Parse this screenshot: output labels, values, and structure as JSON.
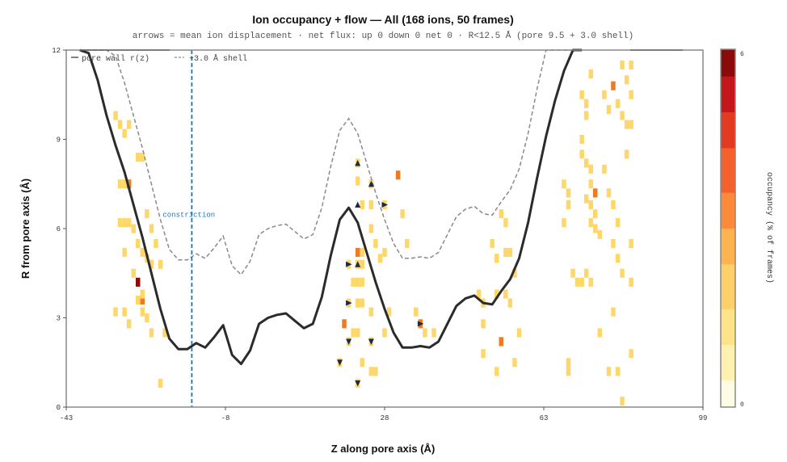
{
  "chart_data": {
    "type": "heatmap",
    "title": "Ion occupancy + flow — All  (168 ions, 50 frames)",
    "subtitle": "arrows = mean ion displacement   ·   net flux: up 0  down 0  net 0 · R<12.5 Å (pore 9.5 + 3.0 shell)",
    "xlabel": "Z along pore axis (Å)",
    "ylabel": "R from pore axis (Å)",
    "xlim": [
      -43,
      99
    ],
    "ylim": [
      0,
      12
    ],
    "xticks": [
      "-43",
      "-8",
      "28",
      "63",
      "99"
    ],
    "yticks": [
      "0",
      "3",
      "6",
      "9",
      "12"
    ],
    "legend": [
      "pore wall r(z)",
      "+3.0 Å shell"
    ],
    "colorbar": {
      "label": "occupancy (% of frames)",
      "min": "0",
      "max": "6"
    },
    "constriction": {
      "z": -15,
      "label": "constriction"
    },
    "pore_wall": {
      "z": [
        -40,
        -38,
        -36,
        -34,
        -32,
        -30,
        -28,
        -26,
        -24,
        -22,
        -20,
        -18,
        -16,
        -14,
        -12,
        -10,
        -8,
        -6,
        -4,
        -2,
        0,
        2,
        4,
        6,
        8,
        10,
        12,
        14,
        16,
        18,
        20,
        22,
        24,
        26,
        28,
        30,
        32,
        34,
        36,
        38,
        40,
        42,
        44,
        46,
        48,
        50,
        52,
        54,
        56,
        58,
        60,
        62,
        64,
        66,
        68,
        70,
        72,
        74,
        76,
        78,
        80,
        82,
        84,
        86,
        88,
        90,
        92
      ],
      "r": [
        12.0,
        11.9,
        11.0,
        9.8,
        8.8,
        7.9,
        6.8,
        5.7,
        4.5,
        3.3,
        2.3,
        1.95,
        1.95,
        2.15,
        2.0,
        2.35,
        2.75,
        1.75,
        1.45,
        1.9,
        2.8,
        3.0,
        3.1,
        3.15,
        2.9,
        2.65,
        2.8,
        3.7,
        5.1,
        6.3,
        6.7,
        6.2,
        5.2,
        4.2,
        3.3,
        2.5,
        2.0,
        2.0,
        2.05,
        2.0,
        2.2,
        2.8,
        3.4,
        3.65,
        3.75,
        3.5,
        3.45,
        3.9,
        4.3,
        5.0,
        6.2,
        7.7,
        9.1,
        10.3,
        11.3,
        12.0,
        12.0
      ]
    },
    "cells": [
      [
        -32,
        9.8,
        1
      ],
      [
        -31,
        9.5,
        1
      ],
      [
        -30,
        9.2,
        1
      ],
      [
        -29,
        9.5,
        1
      ],
      [
        -31,
        7.5,
        1
      ],
      [
        -30,
        7.5,
        1
      ],
      [
        -29,
        7.5,
        4
      ],
      [
        -27,
        8.4,
        1
      ],
      [
        -26,
        8.4,
        1
      ],
      [
        -31,
        6.2,
        1
      ],
      [
        -30,
        6.2,
        1
      ],
      [
        -29,
        6.2,
        1
      ],
      [
        -28,
        6.0,
        1
      ],
      [
        -27,
        5.5,
        1
      ],
      [
        -26,
        5.2,
        1
      ],
      [
        -25,
        5.0,
        1
      ],
      [
        -24,
        4.8,
        1
      ],
      [
        -25,
        6.5,
        1
      ],
      [
        -24,
        6.0,
        1
      ],
      [
        -23,
        5.5,
        1
      ],
      [
        -30,
        5.2,
        1
      ],
      [
        -28,
        4.5,
        1
      ],
      [
        -27,
        4.2,
        6
      ],
      [
        -26,
        3.6,
        4
      ],
      [
        -27,
        3.6,
        1
      ],
      [
        -26,
        3.8,
        1
      ],
      [
        -32,
        3.2,
        1
      ],
      [
        -30,
        3.2,
        1
      ],
      [
        -29,
        2.8,
        1
      ],
      [
        -26,
        3.2,
        1
      ],
      [
        -25,
        3.0,
        1
      ],
      [
        -24,
        2.5,
        1
      ],
      [
        -22,
        4.8,
        1
      ],
      [
        -21,
        2.5,
        1
      ],
      [
        -22,
        0.8,
        1
      ],
      [
        18,
        1.5,
        1
      ],
      [
        20,
        4.8,
        1
      ],
      [
        21,
        4.2,
        1
      ],
      [
        20,
        3.5,
        1
      ],
      [
        19,
        2.8,
        4
      ],
      [
        21,
        2.5,
        1
      ],
      [
        20,
        2.2,
        1
      ],
      [
        22,
        8.2,
        1
      ],
      [
        22,
        7.6,
        1
      ],
      [
        22,
        5.2,
        4
      ],
      [
        23,
        5.2,
        1
      ],
      [
        22,
        4.8,
        1
      ],
      [
        23,
        4.8,
        1
      ],
      [
        22,
        4.2,
        1
      ],
      [
        23,
        4.2,
        1
      ],
      [
        22,
        3.5,
        1
      ],
      [
        23,
        3.5,
        1
      ],
      [
        22,
        2.5,
        1
      ],
      [
        23,
        1.5,
        1
      ],
      [
        22,
        0.8,
        1
      ],
      [
        23,
        6.8,
        1
      ],
      [
        25,
        7.5,
        1
      ],
      [
        25,
        6.8,
        1
      ],
      [
        25,
        6.0,
        1
      ],
      [
        26,
        5.5,
        1
      ],
      [
        27,
        5.0,
        1
      ],
      [
        25,
        3.2,
        1
      ],
      [
        25,
        2.2,
        1
      ],
      [
        25,
        1.2,
        1
      ],
      [
        26,
        1.2,
        1
      ],
      [
        28,
        6.8,
        1
      ],
      [
        28,
        5.2,
        1
      ],
      [
        29,
        3.2,
        1
      ],
      [
        28,
        2.5,
        1
      ],
      [
        31,
        7.8,
        4
      ],
      [
        32,
        6.5,
        1
      ],
      [
        33,
        5.5,
        1
      ],
      [
        35,
        3.2,
        1
      ],
      [
        36,
        2.8,
        4
      ],
      [
        37,
        2.5,
        1
      ],
      [
        39,
        2.5,
        1
      ],
      [
        49,
        3.8,
        1
      ],
      [
        50,
        3.5,
        1
      ],
      [
        50,
        2.8,
        1
      ],
      [
        50,
        1.8,
        1
      ],
      [
        52,
        5.5,
        1
      ],
      [
        53,
        3.8,
        1
      ],
      [
        53,
        5.0,
        1
      ],
      [
        54,
        6.5,
        1
      ],
      [
        55,
        6.2,
        1
      ],
      [
        55,
        5.2,
        1
      ],
      [
        56,
        5.2,
        1
      ],
      [
        54,
        2.2,
        4
      ],
      [
        53,
        1.2,
        1
      ],
      [
        55,
        3.8,
        1
      ],
      [
        56,
        3.5,
        1
      ],
      [
        57,
        4.5,
        1
      ],
      [
        57,
        1.5,
        1
      ],
      [
        58,
        2.5,
        1
      ],
      [
        68,
        7.5,
        1
      ],
      [
        69,
        7.2,
        1
      ],
      [
        69,
        6.8,
        1
      ],
      [
        68,
        6.2,
        1
      ],
      [
        70,
        4.5,
        1
      ],
      [
        71,
        4.2,
        1
      ],
      [
        72,
        4.2,
        1
      ],
      [
        73,
        4.5,
        1
      ],
      [
        74,
        4.2,
        1
      ],
      [
        69,
        1.5,
        1
      ],
      [
        69,
        1.2,
        1
      ],
      [
        72,
        10.5,
        1
      ],
      [
        73,
        10.2,
        1
      ],
      [
        73,
        9.8,
        1
      ],
      [
        74,
        11.2,
        1
      ],
      [
        72,
        9.0,
        1
      ],
      [
        72,
        8.5,
        1
      ],
      [
        73,
        8.2,
        1
      ],
      [
        74,
        8.0,
        1
      ],
      [
        74,
        7.5,
        1
      ],
      [
        75,
        7.2,
        4
      ],
      [
        73,
        7.0,
        1
      ],
      [
        74,
        6.8,
        1
      ],
      [
        75,
        6.5,
        1
      ],
      [
        74,
        6.2,
        1
      ],
      [
        75,
        6.0,
        1
      ],
      [
        76,
        5.8,
        1
      ],
      [
        76,
        2.5,
        1
      ],
      [
        77,
        8.0,
        1
      ],
      [
        78,
        7.2,
        1
      ],
      [
        79,
        6.8,
        1
      ],
      [
        80,
        6.2,
        1
      ],
      [
        77,
        10.5,
        1
      ],
      [
        78,
        10.0,
        1
      ],
      [
        79,
        10.8,
        4
      ],
      [
        80,
        10.2,
        1
      ],
      [
        79,
        5.5,
        1
      ],
      [
        80,
        5.0,
        1
      ],
      [
        81,
        4.5,
        1
      ],
      [
        79,
        3.2,
        1
      ],
      [
        80,
        1.2,
        1
      ],
      [
        81,
        9.8,
        1
      ],
      [
        82,
        9.5,
        1
      ],
      [
        83,
        10.5,
        1
      ],
      [
        83,
        11.5,
        1
      ],
      [
        83,
        9.5,
        1
      ],
      [
        81,
        11.5,
        1
      ],
      [
        82,
        11.0,
        1
      ],
      [
        82,
        8.5,
        1
      ],
      [
        83,
        5.5,
        1
      ],
      [
        83,
        4.2,
        1
      ],
      [
        81,
        0.2,
        1
      ],
      [
        83,
        1.8,
        1
      ],
      [
        78,
        1.2,
        1
      ]
    ],
    "arrows": [
      [
        22,
        8.2,
        "up"
      ],
      [
        22,
        6.8,
        "up"
      ],
      [
        25,
        7.5,
        "up"
      ],
      [
        28,
        6.8,
        "right"
      ],
      [
        20,
        4.8,
        "right"
      ],
      [
        22,
        4.8,
        "up"
      ],
      [
        20,
        3.5,
        "right"
      ],
      [
        18,
        1.5,
        "down"
      ],
      [
        20,
        2.2,
        "down"
      ],
      [
        25,
        2.2,
        "down"
      ],
      [
        22,
        0.8,
        "down"
      ],
      [
        36,
        2.8,
        "right"
      ]
    ],
    "grid": false,
    "legend_position": "top-left"
  },
  "colors": {
    "pore_wall": "#2b2b2b",
    "shell": "#8a8a8a",
    "constriction": "#1f77b4",
    "arrow": "#1b2a4a",
    "axis": "#888888"
  }
}
